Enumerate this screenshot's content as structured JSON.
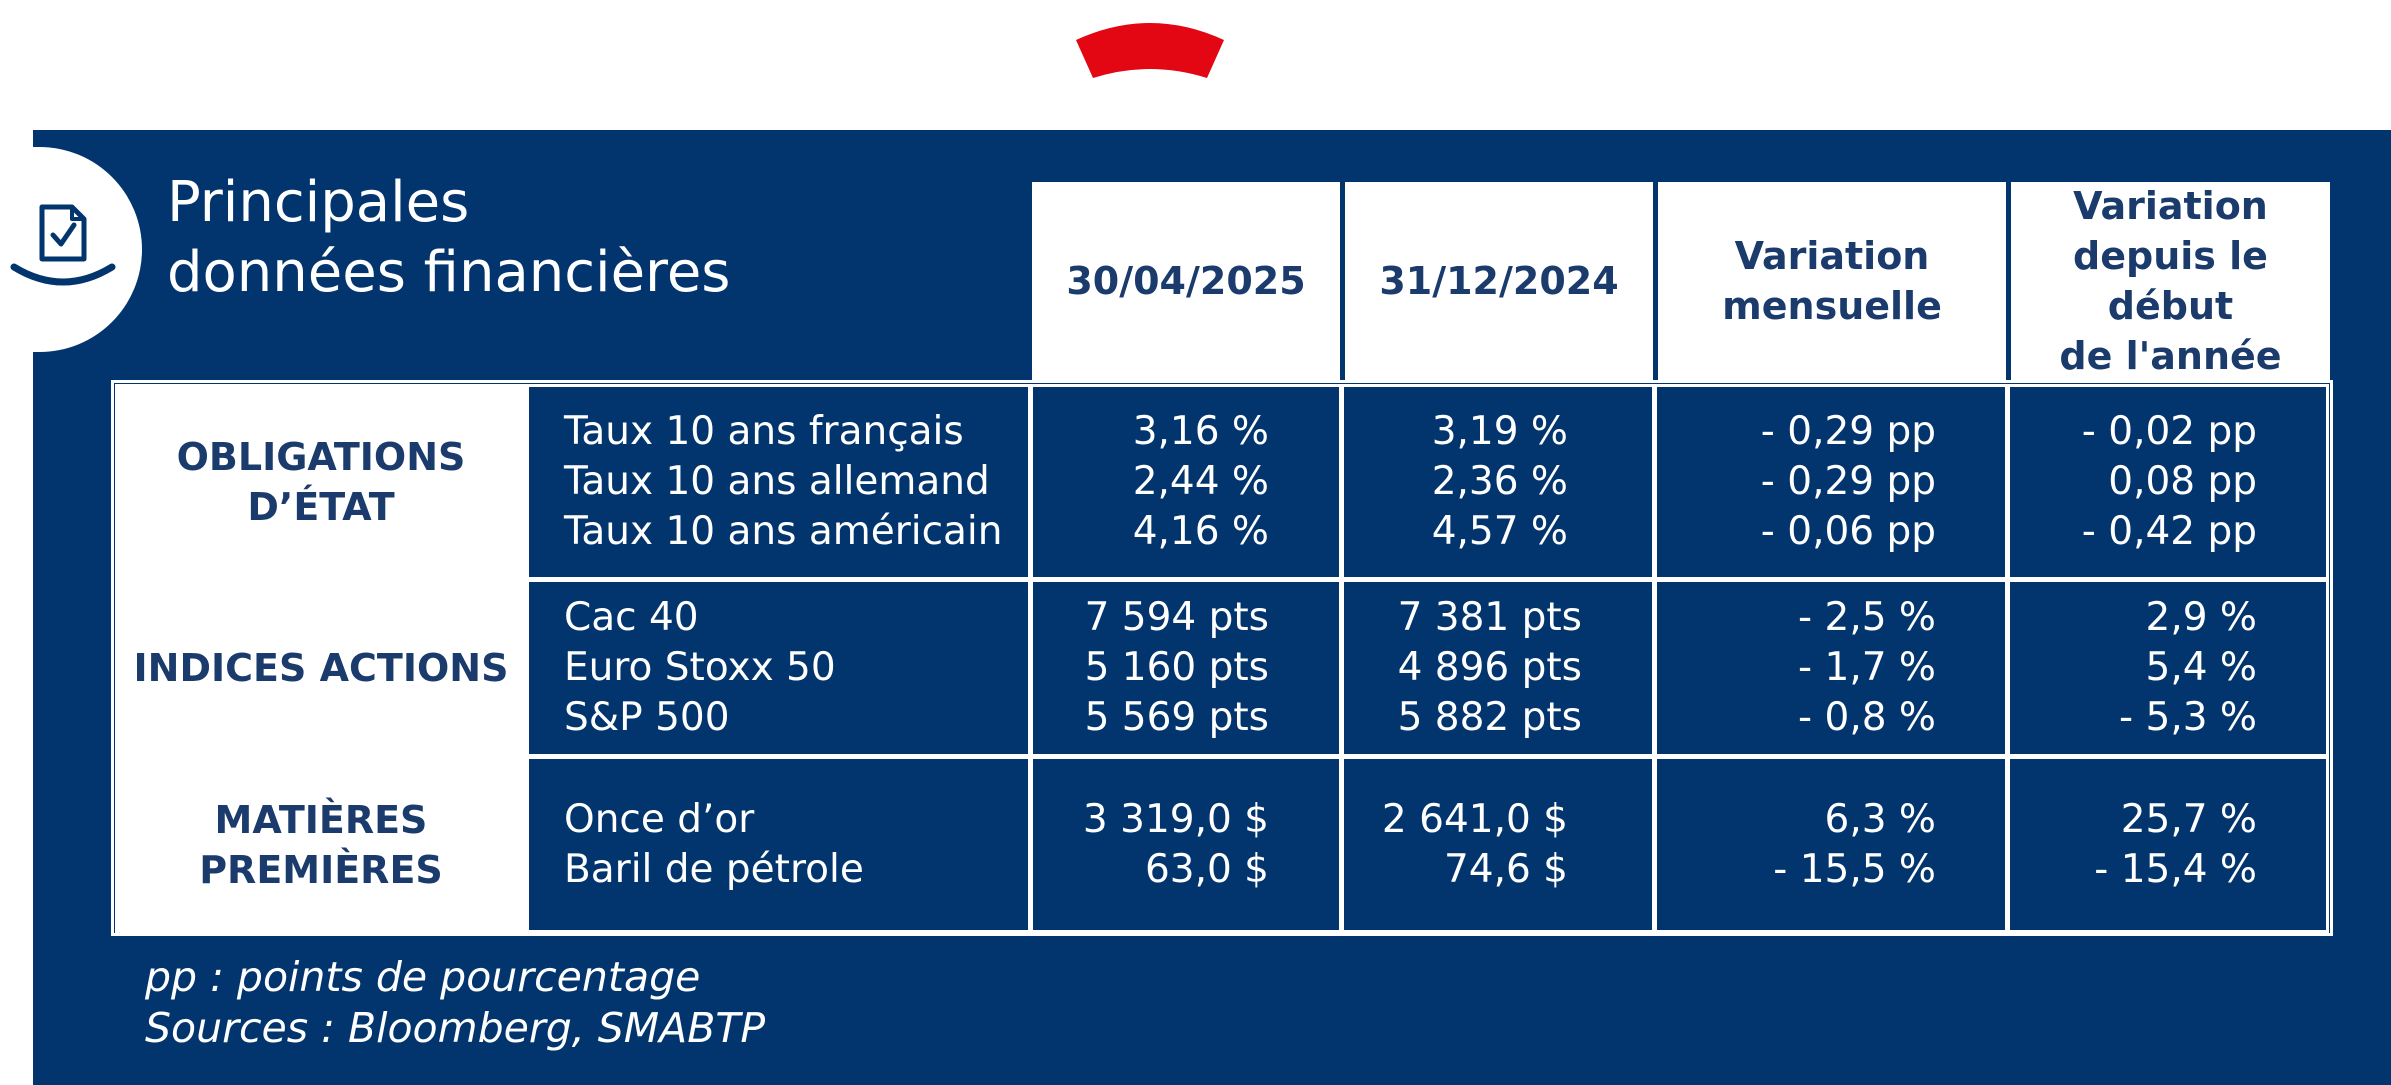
{
  "title": {
    "line1": "Principales",
    "line2": "données financières"
  },
  "columns": {
    "date_current": "30/04/2025",
    "date_previous": "31/12/2024",
    "monthly_line1": "Variation",
    "monthly_line2": "mensuelle",
    "ytd_line1": "Variation",
    "ytd_line2": "depuis le début",
    "ytd_line3": "de l'année"
  },
  "sections": [
    {
      "category_line1": "OBLIGATIONS",
      "category_line2": "D’ÉTAT",
      "labels": [
        "Taux 10 ans français",
        "Taux 10 ans allemand",
        "Taux 10 ans américain"
      ],
      "current": [
        "3,16 %",
        "2,44 %",
        "4,16 %"
      ],
      "previous": [
        "3,19 %",
        "2,36 %",
        "4,57 %"
      ],
      "monthly": [
        "- 0,29 pp",
        "- 0,29 pp",
        "- 0,06 pp"
      ],
      "ytd": [
        "- 0,02 pp",
        "0,08 pp",
        "- 0,42 pp"
      ]
    },
    {
      "category_line1": "INDICES ACTIONS",
      "labels": [
        "Cac 40",
        "Euro Stoxx 50",
        "S&P 500"
      ],
      "current": [
        "7 594 pts",
        "5 160 pts",
        "5 569 pts"
      ],
      "previous": [
        "7 381 pts",
        "4 896 pts",
        "5 882 pts"
      ],
      "monthly": [
        "- 2,5 %",
        "- 1,7 %",
        "- 0,8 %"
      ],
      "ytd": [
        "2,9 %",
        "5,4 %",
        "- 5,3 %"
      ]
    },
    {
      "category_line1": "MATIÈRES",
      "category_line2": "PREMIÈRES",
      "labels": [
        "Once d’or",
        "Baril de pétrole"
      ],
      "current": [
        "3 319,0 $",
        "63,0 $"
      ],
      "previous": [
        "2 641,0 $",
        "74,6 $"
      ],
      "monthly": [
        "6,3 %",
        "- 15,5 %"
      ],
      "ytd": [
        "25,7 %",
        "- 15,4 %"
      ]
    }
  ],
  "footnote": {
    "line1": "pp : points de pourcentage",
    "line2": "Sources : Bloomberg, SMABTP"
  },
  "colors": {
    "panel": "#02356e",
    "accent": "#e30613",
    "text_dark": "#1a3b6b"
  },
  "icons": {
    "header": "document-check-icon",
    "top": "red-arc-logo"
  }
}
